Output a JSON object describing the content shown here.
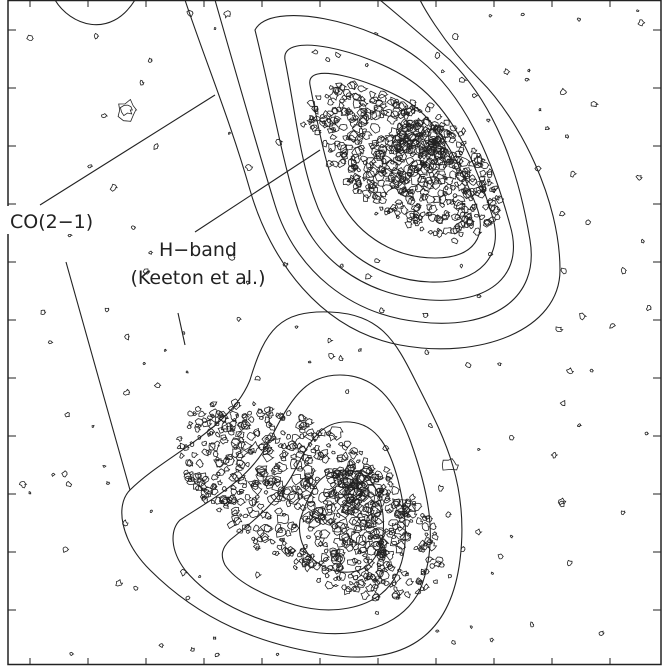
{
  "labels": {
    "co": "CO(2−1)",
    "h_band": "H−band",
    "reference": "(Keeton et al.)"
  }
}
